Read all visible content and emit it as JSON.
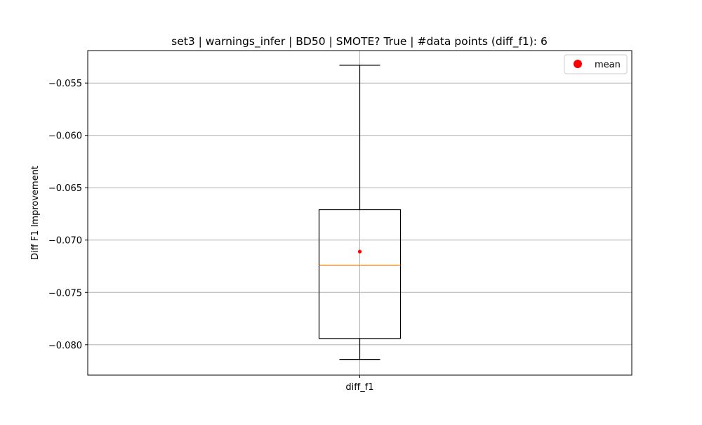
{
  "chart_data": {
    "type": "box",
    "title": "set3 | warnings_infer | BD50 | SMOTE? True | #data points (diff_f1): 6",
    "xlabel": "",
    "ylabel": "Diff F1 Improvement",
    "categories": [
      "diff_f1"
    ],
    "ylim": [
      -0.0829,
      -0.0519
    ],
    "yticks": [
      -0.055,
      -0.06,
      -0.065,
      -0.07,
      -0.075,
      -0.08
    ],
    "ytick_labels": [
      "−0.055",
      "−0.060",
      "−0.065",
      "−0.070",
      "−0.075",
      "−0.080"
    ],
    "grid": true,
    "legend": {
      "position": "top-right",
      "entries": [
        {
          "label": "mean",
          "marker": "circle",
          "color": "#ff0000"
        }
      ]
    },
    "boxes": [
      {
        "category": "diff_f1",
        "whisker_low": -0.0814,
        "q1": -0.0794,
        "median": -0.0724,
        "q3": -0.0671,
        "whisker_high": -0.0533,
        "mean": -0.0711,
        "n": 6
      }
    ],
    "colors": {
      "box": "#000000",
      "median": "#ff7f0e",
      "mean": "#ff0000",
      "grid": "#b0b0b0"
    }
  }
}
